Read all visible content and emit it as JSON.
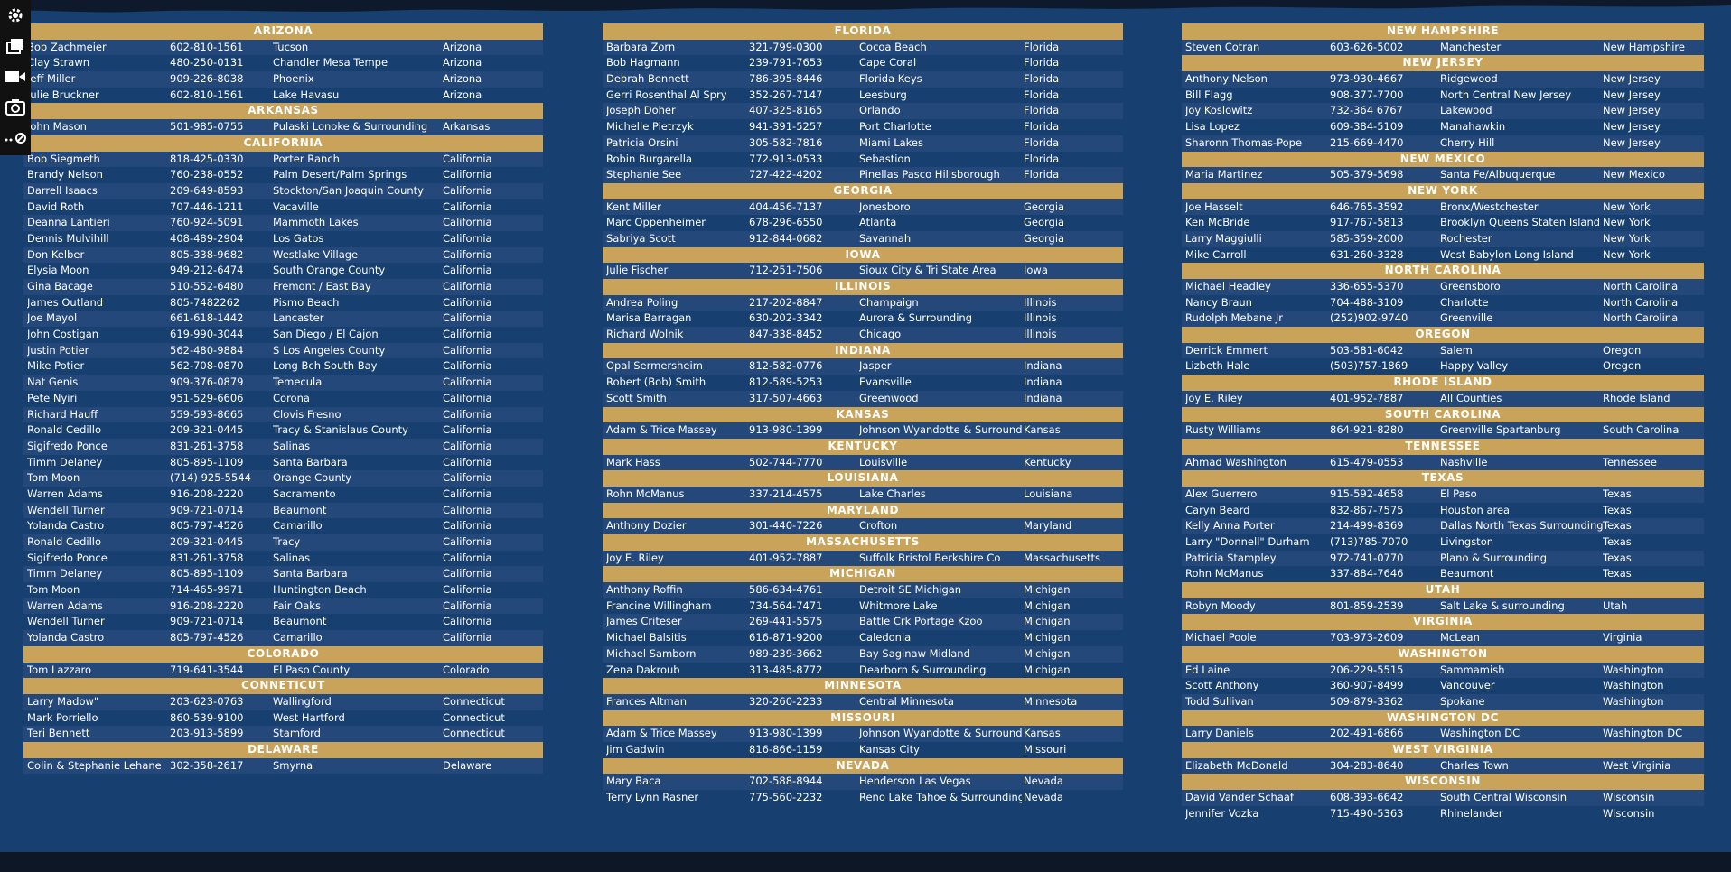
{
  "toolbar": {
    "icons": [
      "gear-icon",
      "layers-icon",
      "video-camera-icon",
      "camera-icon",
      "more-link-icon"
    ]
  },
  "colors": {
    "background": "#173f6f",
    "row_alt": "#24487a",
    "header": "#c9a35a",
    "text": "#ffffff"
  },
  "columns": [
    {
      "sections": [
        {
          "state": "ARIZONA",
          "rows": [
            [
              "Bob Zachmeier",
              "602-810-1561",
              "Tucson",
              "Arizona"
            ],
            [
              "Clay Strawn",
              "480-250-0131",
              "Chandler Mesa Tempe",
              "Arizona"
            ],
            [
              "Jeff Miller",
              "909-226-8038",
              "Phoenix",
              "Arizona"
            ],
            [
              "Julie Bruckner",
              "602-810-1561",
              "Lake Havasu",
              "Arizona"
            ]
          ]
        },
        {
          "state": "ARKANSAS",
          "rows": [
            [
              "John Mason",
              "501-985-0755",
              "Pulaski Lonoke & Surrounding",
              "Arkansas"
            ]
          ]
        },
        {
          "state": "CALIFORNIA",
          "rows": [
            [
              "Bob Siegmeth",
              "818-425-0330",
              "Porter Ranch",
              "California"
            ],
            [
              "Brandy Nelson",
              "760-238-0552",
              "Palm Desert/Palm Springs",
              "California"
            ],
            [
              "Darrell Isaacs",
              "209-649-8593",
              "Stockton/San Joaquin County",
              "California"
            ],
            [
              "David Roth",
              "707-446-1211",
              "Vacaville",
              "California"
            ],
            [
              "Deanna Lantieri",
              "760-924-5091",
              "Mammoth Lakes",
              "California"
            ],
            [
              "Dennis Mulvihill",
              "408-489-2904",
              "Los Gatos",
              "California"
            ],
            [
              "Don Kelber",
              "805-338-9682",
              "Westlake Village",
              "California"
            ],
            [
              "Elysia Moon",
              "949-212-6474",
              "South Orange County",
              "California"
            ],
            [
              "Gina Bacage",
              "510-552-6480",
              "Fremont / East Bay",
              "California"
            ],
            [
              "James Outland",
              "805-7482262",
              "Pismo Beach",
              "California"
            ],
            [
              "Joe Mayol",
              "661-618-1442",
              "Lancaster",
              "California"
            ],
            [
              "John Costigan",
              "619-990-3044",
              "San Diego / El Cajon",
              "California"
            ],
            [
              "Justin Potier",
              "562-480-9884",
              "S Los Angeles County",
              "California"
            ],
            [
              "Mike Potier",
              "562-708-0870",
              "Long Bch South Bay",
              "California"
            ],
            [
              "Nat Genis",
              "909-376-0879",
              "Temecula",
              "California"
            ],
            [
              "Pete Nyiri",
              "951-529-6606",
              "Corona",
              "California"
            ],
            [
              "Richard Hauff",
              "559-593-8665",
              "Clovis Fresno",
              "California"
            ],
            [
              "Ronald Cedillo",
              "209-321-0445",
              "Tracy & Stanislaus County",
              "California"
            ],
            [
              "Sigifredo Ponce",
              "831-261-3758",
              "Salinas",
              "California"
            ],
            [
              "Timm Delaney",
              "805-895-1109",
              "Santa Barbara",
              "California"
            ],
            [
              "Tom Moon",
              "(714) 925-5544",
              "Orange County",
              "California"
            ],
            [
              "Warren Adams",
              "916-208-2220",
              "Sacramento",
              "California"
            ],
            [
              "Wendell Turner",
              "909-721-0714",
              "Beaumont",
              "California"
            ],
            [
              "Yolanda Castro",
              "805-797-4526",
              "Camarillo",
              "California"
            ],
            [
              "Ronald Cedillo",
              "209-321-0445",
              "Tracy",
              "California"
            ],
            [
              "Sigifredo Ponce",
              "831-261-3758",
              "Salinas",
              "California"
            ],
            [
              "Timm Delaney",
              "805-895-1109",
              "Santa Barbara",
              "California"
            ],
            [
              "Tom Moon",
              "714-465-9971",
              "Huntington Beach",
              "California"
            ],
            [
              "Warren Adams",
              "916-208-2220",
              "Fair Oaks",
              "California"
            ],
            [
              "Wendell Turner",
              "909-721-0714",
              "Beaumont",
              "California"
            ],
            [
              "Yolanda Castro",
              "805-797-4526",
              "Camarillo",
              "California"
            ]
          ]
        },
        {
          "state": "COLORADO",
          "rows": [
            [
              "Tom Lazzaro",
              "719-641-3544",
              "El Paso County",
              "Colorado"
            ]
          ]
        },
        {
          "state": "CONNETICUT",
          "rows": [
            [
              "Larry Madow\"",
              "203-623-0763",
              "Wallingford",
              "Connecticut"
            ],
            [
              "Mark Porriello",
              "860-539-9100",
              "West Hartford",
              "Connecticut"
            ],
            [
              "Teri Bennett",
              "203-913-5899",
              "Stamford",
              "Connecticut"
            ]
          ]
        },
        {
          "state": "DELAWARE",
          "rows": [
            [
              "Colin & Stephanie Lehane",
              "302-358-2617",
              "Smyrna",
              "Delaware"
            ]
          ]
        }
      ]
    },
    {
      "sections": [
        {
          "state": "FLORIDA",
          "rows": [
            [
              "Barbara Zorn",
              "321-799-0300",
              "Cocoa Beach",
              "Florida"
            ],
            [
              "Bob Hagmann",
              "239-791-7653",
              "Cape Coral",
              "Florida"
            ],
            [
              "Debrah Bennett",
              "786-395-8446",
              "Florida Keys",
              "Florida"
            ],
            [
              "Gerri Rosenthal Al Spry",
              "352-267-7147",
              "Leesburg",
              "Florida"
            ],
            [
              "Joseph Doher",
              "407-325-8165",
              "Orlando",
              "Florida"
            ],
            [
              "Michelle Pietrzyk",
              "941-391-5257",
              "Port Charlotte",
              "Florida"
            ],
            [
              "Patricia Orsini",
              "305-582-7816",
              "Miami Lakes",
              "Florida"
            ],
            [
              "Robin Burgarella",
              "772-913-0533",
              "Sebastion",
              "Florida"
            ],
            [
              "Stephanie See",
              "727-422-4202",
              "Pinellas Pasco Hillsborough",
              "Florida"
            ]
          ]
        },
        {
          "state": "GEORGIA",
          "rows": [
            [
              "Kent Miller",
              "404-456-7137",
              "Jonesboro",
              "Georgia"
            ],
            [
              "Marc Oppenheimer",
              "678-296-6550",
              "Atlanta",
              "Georgia"
            ],
            [
              "Sabriya Scott",
              "912-844-0682",
              "Savannah",
              "Georgia"
            ]
          ]
        },
        {
          "state": "IOWA",
          "rows": [
            [
              "Julie Fischer",
              "712-251-7506",
              "Sioux City & Tri State Area",
              "Iowa"
            ]
          ]
        },
        {
          "state": "ILLINOIS",
          "rows": [
            [
              "Andrea Poling",
              "217-202-8847",
              "Champaign",
              "Illinois"
            ],
            [
              "Marisa Barragan",
              "630-202-3342",
              "Aurora & Surrounding",
              "Illinois"
            ],
            [
              "Richard Wolnik",
              "847-338-8452",
              "Chicago",
              "Illinois"
            ]
          ]
        },
        {
          "state": "INDIANA",
          "rows": [
            [
              "Opal Sermersheim",
              "812-582-0776",
              "Jasper",
              "Indiana"
            ],
            [
              "Robert (Bob) Smith",
              "812-589-5253",
              "Evansville",
              "Indiana"
            ],
            [
              "Scott Smith",
              "317-507-4663",
              "Greenwood",
              "Indiana"
            ]
          ]
        },
        {
          "state": "KANSAS",
          "rows": [
            [
              "Adam & Trice Massey",
              "913-980-1399",
              "Johnson Wyandotte & Surrounding",
              "Kansas"
            ]
          ]
        },
        {
          "state": "KENTUCKY",
          "rows": [
            [
              "Mark Hass",
              "502-744-7770",
              "Louisville",
              "Kentucky"
            ]
          ]
        },
        {
          "state": "LOUISIANA",
          "rows": [
            [
              "Rohn McManus",
              "337-214-4575",
              "Lake Charles",
              "Louisiana"
            ]
          ]
        },
        {
          "state": "MARYLAND",
          "rows": [
            [
              "Anthony Dozier",
              "301-440-7226",
              "Crofton",
              "Maryland"
            ]
          ]
        },
        {
          "state": "MASSACHUSETTS",
          "rows": [
            [
              "Joy E. Riley",
              "401-952-7887",
              "Suffolk Bristol Berkshire Co",
              "Massachusetts"
            ]
          ]
        },
        {
          "state": "MICHIGAN",
          "rows": [
            [
              "Anthony Roffin",
              "586-634-4761",
              "Detroit SE Michigan",
              "Michigan"
            ],
            [
              "Francine Willingham",
              "734-564-7471",
              "Whitmore Lake",
              "Michigan"
            ],
            [
              "James Criteser",
              "269-441-5575",
              "Battle Crk Portage Kzoo",
              "Michigan"
            ],
            [
              "Michael Balsitis",
              "616-871-9200",
              "Caledonia",
              "Michigan"
            ],
            [
              "Michael Samborn",
              "989-239-3662",
              "Bay Saginaw Midland",
              "Michigan"
            ],
            [
              "Zena Dakroub",
              "313-485-8772",
              "Dearborn & Surrounding",
              "Michigan"
            ]
          ]
        },
        {
          "state": "MINNESOTA",
          "rows": [
            [
              "Frances Altman",
              "320-260-2233",
              "Central  Minnesota",
              "Minnesota"
            ]
          ]
        },
        {
          "state": "MISSOURI",
          "rows": [
            [
              "Adam & Trice Massey",
              "913-980-1399",
              "Johnson Wyandotte & Surrounding",
              "Kansas"
            ],
            [
              "Jim Gadwin",
              "816-866-1159",
              "Kansas City",
              "Missouri"
            ]
          ]
        },
        {
          "state": "NEVADA",
          "rows": [
            [
              "Mary Baca",
              "702-588-8944",
              "Henderson Las Vegas",
              "Nevada"
            ],
            [
              "Terry Lynn Rasner",
              "775-560-2232",
              "Reno Lake Tahoe & Surrounding",
              "Nevada"
            ]
          ]
        }
      ]
    },
    {
      "sections": [
        {
          "state": "NEW HAMPSHIRE",
          "rows": [
            [
              "Steven Cotran",
              "603-626-5002",
              "Manchester",
              "New Hampshire"
            ]
          ]
        },
        {
          "state": "NEW JERSEY",
          "rows": [
            [
              "Anthony Nelson",
              "973-930-4667",
              "Ridgewood",
              "New Jersey"
            ],
            [
              "Bill Flagg",
              "908-377-7700",
              "North Central New Jersey",
              "New Jersey"
            ],
            [
              "Joy Koslowitz",
              "732-364 6767",
              "Lakewood",
              "New Jersey"
            ],
            [
              "Lisa Lopez",
              "609-384-5109",
              "Manahawkin",
              "New Jersey"
            ],
            [
              "Sharonn Thomas-Pope",
              "215-669-4470",
              "Cherry Hill",
              "New Jersey"
            ]
          ]
        },
        {
          "state": "NEW MEXICO",
          "rows": [
            [
              "Maria Martinez",
              "505-379-5698",
              "Santa Fe/Albuquerque",
              "New Mexico"
            ]
          ]
        },
        {
          "state": "NEW YORK",
          "rows": [
            [
              "Joe Hasselt",
              "646-765-3592",
              "Bronx/Westchester",
              "New York"
            ],
            [
              "Ken McBride",
              "917-767-5813",
              "Brooklyn Queens Staten Island",
              "New York"
            ],
            [
              "Larry Maggiulli",
              "585-359-2000",
              "Rochester",
              "New York"
            ],
            [
              "Mike Carroll",
              "631-260-3328",
              "West Babylon Long Island",
              "New York"
            ]
          ]
        },
        {
          "state": "NORTH CAROLINA",
          "rows": [
            [
              "Michael Headley",
              "336-655-5370",
              "Greensboro",
              "North Carolina"
            ],
            [
              "Nancy Braun",
              "704-488-3109",
              "Charlotte",
              "North Carolina"
            ],
            [
              "Rudolph Mebane Jr",
              "(252)902-9740",
              "Greenville",
              "North Carolina"
            ]
          ]
        },
        {
          "state": "OREGON",
          "rows": [
            [
              "Derrick Emmert",
              "503-581-6042",
              "Salem",
              "Oregon"
            ],
            [
              "Lizbeth Hale",
              "(503)757-1869",
              "Happy Valley",
              "Oregon"
            ]
          ]
        },
        {
          "state": "RHODE ISLAND",
          "rows": [
            [
              "Joy E. Riley",
              "401-952-7887",
              "All Counties",
              "Rhode Island"
            ]
          ]
        },
        {
          "state": "SOUTH CAROLINA",
          "rows": [
            [
              "Rusty Williams",
              "864-921-8280",
              "Greenville Spartanburg",
              "South Carolina"
            ]
          ]
        },
        {
          "state": "TENNESSEE",
          "rows": [
            [
              "Ahmad Washington",
              "615-479-0553",
              "Nashville",
              "Tennessee"
            ]
          ]
        },
        {
          "state": "TEXAS",
          "rows": [
            [
              "Alex Guerrero",
              "915-592-4658",
              "El Paso",
              "Texas"
            ],
            [
              "Caryn Beard",
              "832-867-7575",
              "Houston area",
              "Texas"
            ],
            [
              "Kelly Anna Porter",
              "214-499-8369",
              "Dallas North Texas Surrounding",
              "Texas"
            ],
            [
              "Larry \"Donnell\" Durham",
              "(713)785-7070",
              "Livingston",
              "Texas"
            ],
            [
              "Patricia Stampley",
              "972-741-0770",
              "Plano & Surrounding",
              "Texas"
            ],
            [
              "Rohn McManus",
              "337-884-7646",
              "Beaumont",
              "Texas"
            ]
          ]
        },
        {
          "state": "UTAH",
          "rows": [
            [
              "Robyn Moody",
              "801-859-2539",
              "Salt Lake & surrounding",
              "Utah"
            ]
          ]
        },
        {
          "state": "VIRGINIA",
          "rows": [
            [
              "Michael Poole",
              "703-973-2609",
              "McLean",
              "Virginia"
            ]
          ]
        },
        {
          "state": "WASHINGTON",
          "rows": [
            [
              "Ed Laine",
              "206-229-5515",
              "Sammamish",
              "Washington"
            ],
            [
              "Scott Anthony",
              "360-907-8499",
              "Vancouver",
              "Washington"
            ],
            [
              "Todd Sullivan",
              "509-879-3362",
              "Spokane",
              "Washington"
            ]
          ]
        },
        {
          "state": "WASHINGTON DC",
          "rows": [
            [
              "Larry Daniels",
              "202-491-6866",
              "Washington DC",
              "Washington DC"
            ]
          ]
        },
        {
          "state": "WEST VIRGINIA",
          "rows": [
            [
              "Elizabeth McDonald",
              "304-283-8640",
              "Charles Town",
              "West Virginia"
            ]
          ]
        },
        {
          "state": "WISCONSIN",
          "rows": [
            [
              "David Vander Schaaf",
              "608-393-6642",
              "South Central Wisconsin",
              "Wisconsin"
            ],
            [
              "Jennifer Vozka",
              "715-490-5363",
              "Rhinelander",
              "Wisconsin"
            ]
          ]
        }
      ]
    }
  ]
}
